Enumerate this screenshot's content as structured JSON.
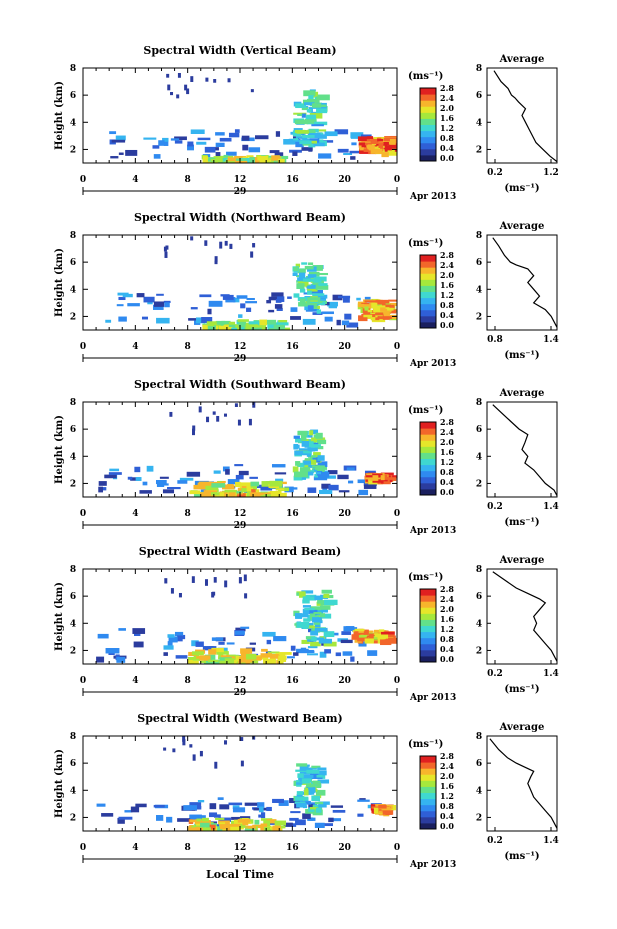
{
  "colors": {
    "scale": [
      "#ffffff",
      "#1a1f5e",
      "#2b3c9e",
      "#2f5fd6",
      "#2f8af0",
      "#35b4f0",
      "#3fd8d0",
      "#62e08a",
      "#a6e83c",
      "#e6e62a",
      "#f7b52c",
      "#f2662a",
      "#e02020"
    ]
  },
  "panels": [
    {
      "id": "vertical",
      "title": "Spectral Width (Vertical Beam)",
      "ylabel": "Height (km)",
      "yticks": [
        "2",
        "4",
        "6",
        "8"
      ],
      "xticks": [
        "0",
        "4",
        "8",
        "12",
        "16",
        "20",
        "0"
      ],
      "date_day": "29",
      "date_right": "Apr 2013",
      "unit": "(ms⁻¹)",
      "colorbar_ticks": [
        "0.0",
        "0.4",
        "0.8",
        "1.2",
        "1.6",
        "2.0",
        "2.4",
        "2.8"
      ],
      "avg_title": "Average",
      "avg_yticks": [
        "2",
        "4",
        "6",
        "8"
      ],
      "avg_xticks": [
        "0.2",
        "1.2"
      ],
      "avg_xlabel": "(ms⁻¹)",
      "avg_xlim": [
        0.2,
        1.2
      ]
    },
    {
      "id": "northward",
      "title": "Spectral Width (Northward Beam)",
      "ylabel": "Height (km)",
      "yticks": [
        "2",
        "4",
        "6",
        "8"
      ],
      "xticks": [
        "0",
        "4",
        "8",
        "12",
        "16",
        "20",
        "0"
      ],
      "date_day": "29",
      "date_right": "Apr 2013",
      "unit": "(ms⁻¹)",
      "colorbar_ticks": [
        "0.0",
        "0.4",
        "0.8",
        "1.2",
        "1.6",
        "2.0",
        "2.4",
        "2.8"
      ],
      "avg_title": "Average",
      "avg_yticks": [
        "2",
        "4",
        "6",
        "8"
      ],
      "avg_xticks": [
        "0.8",
        "1.4"
      ],
      "avg_xlabel": "(ms⁻¹)",
      "avg_xlim": [
        0.8,
        1.4
      ]
    },
    {
      "id": "southward",
      "title": "Spectral Width (Southward Beam)",
      "ylabel": "Height (km)",
      "yticks": [
        "2",
        "4",
        "6",
        "8"
      ],
      "xticks": [
        "0",
        "4",
        "8",
        "12",
        "16",
        "20",
        "0"
      ],
      "date_day": "29",
      "date_right": "Apr 2013",
      "unit": "(ms⁻¹)",
      "colorbar_ticks": [
        "0.0",
        "0.4",
        "0.8",
        "1.2",
        "1.6",
        "2.0",
        "2.4",
        "2.8"
      ],
      "avg_title": "Average",
      "avg_yticks": [
        "2",
        "4",
        "6",
        "8"
      ],
      "avg_xticks": [
        "0.2",
        "1.4"
      ],
      "avg_xlabel": "(ms⁻¹)",
      "avg_xlim": [
        0.2,
        1.4
      ]
    },
    {
      "id": "eastward",
      "title": "Spectral Width (Eastward Beam)",
      "ylabel": "Height (km)",
      "yticks": [
        "2",
        "4",
        "6",
        "8"
      ],
      "xticks": [
        "0",
        "4",
        "8",
        "12",
        "16",
        "20",
        "0"
      ],
      "date_day": "29",
      "date_right": "Apr 2013",
      "unit": "(ms⁻¹)",
      "colorbar_ticks": [
        "0.0",
        "0.4",
        "0.8",
        "1.2",
        "1.6",
        "2.0",
        "2.4",
        "2.8"
      ],
      "avg_title": "Average",
      "avg_yticks": [
        "2",
        "4",
        "6",
        "8"
      ],
      "avg_xticks": [
        "0.2",
        "1.4"
      ],
      "avg_xlabel": "(ms⁻¹)",
      "avg_xlim": [
        0.2,
        1.4
      ]
    },
    {
      "id": "westward",
      "title": "Spectral Width (Westward Beam)",
      "ylabel": "Height (km)",
      "yticks": [
        "2",
        "4",
        "6",
        "8"
      ],
      "xticks": [
        "0",
        "4",
        "8",
        "12",
        "16",
        "20",
        "0"
      ],
      "date_day": "29",
      "date_right": "Apr 2013",
      "unit": "(ms⁻¹)",
      "colorbar_ticks": [
        "0.0",
        "0.4",
        "0.8",
        "1.2",
        "1.6",
        "2.0",
        "2.4",
        "2.8"
      ],
      "avg_title": "Average",
      "avg_yticks": [
        "2",
        "4",
        "6",
        "8"
      ],
      "avg_xticks": [
        "0.2",
        "1.4"
      ],
      "avg_xlabel": "(ms⁻¹)",
      "avg_xlim": [
        0.2,
        1.4
      ]
    }
  ],
  "xlabel_bottom": "Local Time",
  "chart_data": [
    {
      "type": "heatmap",
      "title": "Spectral Width (Vertical Beam)",
      "xlabel": "",
      "ylabel": "Height (km)",
      "xlim": [
        0,
        24
      ],
      "ylim": [
        1,
        8
      ],
      "zlabel": "(ms⁻¹)",
      "zlim": [
        0,
        2.8
      ],
      "features": [
        {
          "t": [
            2,
            22
          ],
          "h": [
            1.5,
            3.5
          ],
          "level": 0.6
        },
        {
          "t": [
            9,
            15
          ],
          "h": [
            1,
            1.6
          ],
          "level": 1.8
        },
        {
          "t": [
            16,
            18
          ],
          "h": [
            2.5,
            6.5
          ],
          "level": 1.3
        },
        {
          "t": [
            21,
            23.5
          ],
          "h": [
            1.8,
            3
          ],
          "level": 2.4
        }
      ]
    },
    {
      "type": "line",
      "title": "Average",
      "xlabel": "(ms⁻¹)",
      "ylabel": "Height (km)",
      "xlim": [
        0.2,
        1.2
      ],
      "ylim": [
        1,
        8
      ],
      "x": [
        0.3,
        0.4,
        0.5,
        0.55,
        0.6,
        0.65,
        0.75,
        0.7,
        0.75,
        0.8,
        0.85,
        0.9,
        1.0,
        1.1,
        1.2
      ],
      "y": [
        7.8,
        7.0,
        6.5,
        6.0,
        5.8,
        5.5,
        5.0,
        4.5,
        4.0,
        3.5,
        3.0,
        2.5,
        2.0,
        1.5,
        1.1
      ]
    },
    {
      "type": "heatmap",
      "title": "Spectral Width (Northward Beam)",
      "xlabel": "",
      "ylabel": "Height (km)",
      "xlim": [
        0,
        24
      ],
      "ylim": [
        1,
        8
      ],
      "zlabel": "(ms⁻¹)",
      "zlim": [
        0,
        2.8
      ],
      "features": [
        {
          "t": [
            1,
            22
          ],
          "h": [
            1.5,
            3.8
          ],
          "level": 0.6
        },
        {
          "t": [
            9,
            15
          ],
          "h": [
            1,
            1.8
          ],
          "level": 1.6
        },
        {
          "t": [
            16,
            18
          ],
          "h": [
            2.5,
            6
          ],
          "level": 1.3
        },
        {
          "t": [
            21,
            23.5
          ],
          "h": [
            2,
            3.3
          ],
          "level": 2.2
        }
      ]
    },
    {
      "type": "line",
      "title": "Average",
      "xlabel": "(ms⁻¹)",
      "ylabel": "Height (km)",
      "xlim": [
        0.8,
        1.4
      ],
      "ylim": [
        1,
        8
      ],
      "x": [
        0.85,
        0.9,
        0.95,
        1.0,
        1.05,
        1.15,
        1.2,
        1.15,
        1.2,
        1.25,
        1.2,
        1.3,
        1.35,
        1.4
      ],
      "y": [
        7.8,
        7.2,
        6.5,
        6.0,
        5.8,
        5.5,
        5.0,
        4.5,
        4.0,
        3.5,
        3.0,
        2.5,
        2.0,
        1.2
      ]
    },
    {
      "type": "heatmap",
      "title": "Spectral Width (Southward Beam)",
      "xlabel": "",
      "ylabel": "Height (km)",
      "xlim": [
        0,
        24
      ],
      "ylim": [
        1,
        8
      ],
      "zlabel": "(ms⁻¹)",
      "zlim": [
        0,
        2.8
      ],
      "features": [
        {
          "t": [
            1,
            22
          ],
          "h": [
            1.5,
            3.5
          ],
          "level": 0.6
        },
        {
          "t": [
            8,
            15
          ],
          "h": [
            1,
            2.2
          ],
          "level": 2.0
        },
        {
          "t": [
            16,
            18
          ],
          "h": [
            2.5,
            6
          ],
          "level": 1.3
        },
        {
          "t": [
            21.5,
            23
          ],
          "h": [
            2.3,
            2.8
          ],
          "level": 2.6
        }
      ]
    },
    {
      "type": "line",
      "title": "Average",
      "xlabel": "(ms⁻¹)",
      "ylabel": "Height (km)",
      "xlim": [
        0.2,
        1.4
      ],
      "ylim": [
        1,
        8
      ],
      "x": [
        0.3,
        0.45,
        0.6,
        0.75,
        0.9,
        0.85,
        0.8,
        0.9,
        0.85,
        1.0,
        1.1,
        1.2,
        1.35,
        1.4
      ],
      "y": [
        7.8,
        7.2,
        6.6,
        6.0,
        5.6,
        5.0,
        4.5,
        4.0,
        3.5,
        3.0,
        2.5,
        2.0,
        1.5,
        1.1
      ]
    },
    {
      "type": "heatmap",
      "title": "Spectral Width (Eastward Beam)",
      "xlabel": "",
      "ylabel": "Height (km)",
      "xlim": [
        0,
        24
      ],
      "ylim": [
        1,
        8
      ],
      "zlabel": "(ms⁻¹)",
      "zlim": [
        0,
        2.8
      ],
      "features": [
        {
          "t": [
            1,
            22
          ],
          "h": [
            1.5,
            3.8
          ],
          "level": 0.6
        },
        {
          "t": [
            8,
            15
          ],
          "h": [
            1,
            2.2
          ],
          "level": 2.0
        },
        {
          "t": [
            16,
            18.5
          ],
          "h": [
            2.5,
            6.5
          ],
          "level": 1.3
        },
        {
          "t": [
            20.5,
            23.5
          ],
          "h": [
            2.8,
            3.6
          ],
          "level": 2.3
        }
      ]
    },
    {
      "type": "line",
      "title": "Average",
      "xlabel": "(ms⁻¹)",
      "ylabel": "Height (km)",
      "xlim": [
        0.2,
        1.4
      ],
      "ylim": [
        1,
        8
      ],
      "x": [
        0.3,
        0.5,
        0.7,
        0.9,
        1.1,
        1.2,
        1.1,
        1.0,
        1.05,
        1.0,
        1.1,
        1.2,
        1.3,
        1.4
      ],
      "y": [
        7.8,
        7.2,
        6.6,
        6.2,
        5.8,
        5.5,
        5.0,
        4.5,
        4.0,
        3.5,
        3.0,
        2.5,
        2.0,
        1.2
      ]
    },
    {
      "type": "heatmap",
      "title": "Spectral Width (Westward Beam)",
      "xlabel": "Local Time",
      "ylabel": "Height (km)",
      "xlim": [
        0,
        24
      ],
      "ylim": [
        1,
        8
      ],
      "zlabel": "(ms⁻¹)",
      "zlim": [
        0,
        2.8
      ],
      "features": [
        {
          "t": [
            1,
            22
          ],
          "h": [
            1.5,
            3.5
          ],
          "level": 0.6
        },
        {
          "t": [
            8,
            15
          ],
          "h": [
            1,
            2
          ],
          "level": 2.0
        },
        {
          "t": [
            16,
            18
          ],
          "h": [
            2.5,
            6
          ],
          "level": 1.3
        },
        {
          "t": [
            22,
            23
          ],
          "h": [
            2.5,
            3
          ],
          "level": 2.4
        }
      ]
    },
    {
      "type": "line",
      "title": "Average",
      "xlabel": "(ms⁻¹)",
      "ylabel": "Height (km)",
      "xlim": [
        0.2,
        1.4
      ],
      "ylim": [
        1,
        8
      ],
      "x": [
        0.25,
        0.4,
        0.55,
        0.7,
        0.85,
        1.0,
        0.95,
        0.9,
        0.95,
        1.0,
        1.1,
        1.2,
        1.3,
        1.4
      ],
      "y": [
        7.8,
        7.0,
        6.4,
        6.0,
        5.7,
        5.4,
        5.0,
        4.5,
        4.0,
        3.5,
        3.0,
        2.5,
        2.0,
        1.2
      ]
    }
  ]
}
